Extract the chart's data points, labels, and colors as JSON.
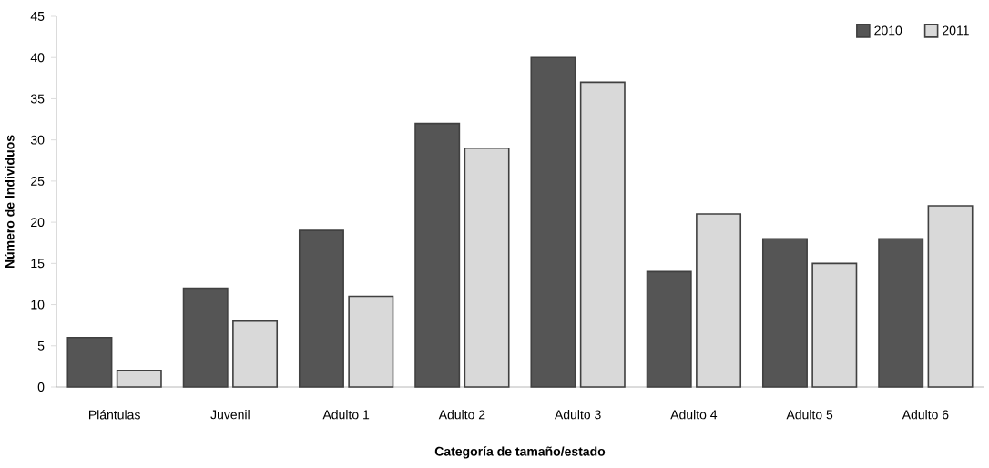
{
  "chart_data": {
    "type": "bar",
    "xlabel": "Categoría de tamaño/estado",
    "ylabel": "Número de Individuos",
    "categories": [
      "Plántulas",
      "Juvenil",
      "Adulto 1",
      "Adulto 2",
      "Adulto 3",
      "Adulto 4",
      "Adulto 5",
      "Adulto 6"
    ],
    "series": [
      {
        "name": "2010",
        "color": "#555555",
        "values": [
          6,
          12,
          19,
          32,
          40,
          14,
          18,
          18
        ]
      },
      {
        "name": "2011",
        "color": "#d9d9d9",
        "values": [
          2,
          8,
          11,
          29,
          37,
          21,
          15,
          22
        ]
      }
    ],
    "ylim": [
      0,
      45
    ],
    "yticks": [
      0,
      5,
      10,
      15,
      20,
      25,
      30,
      35,
      40,
      45
    ],
    "legend": "top right"
  }
}
